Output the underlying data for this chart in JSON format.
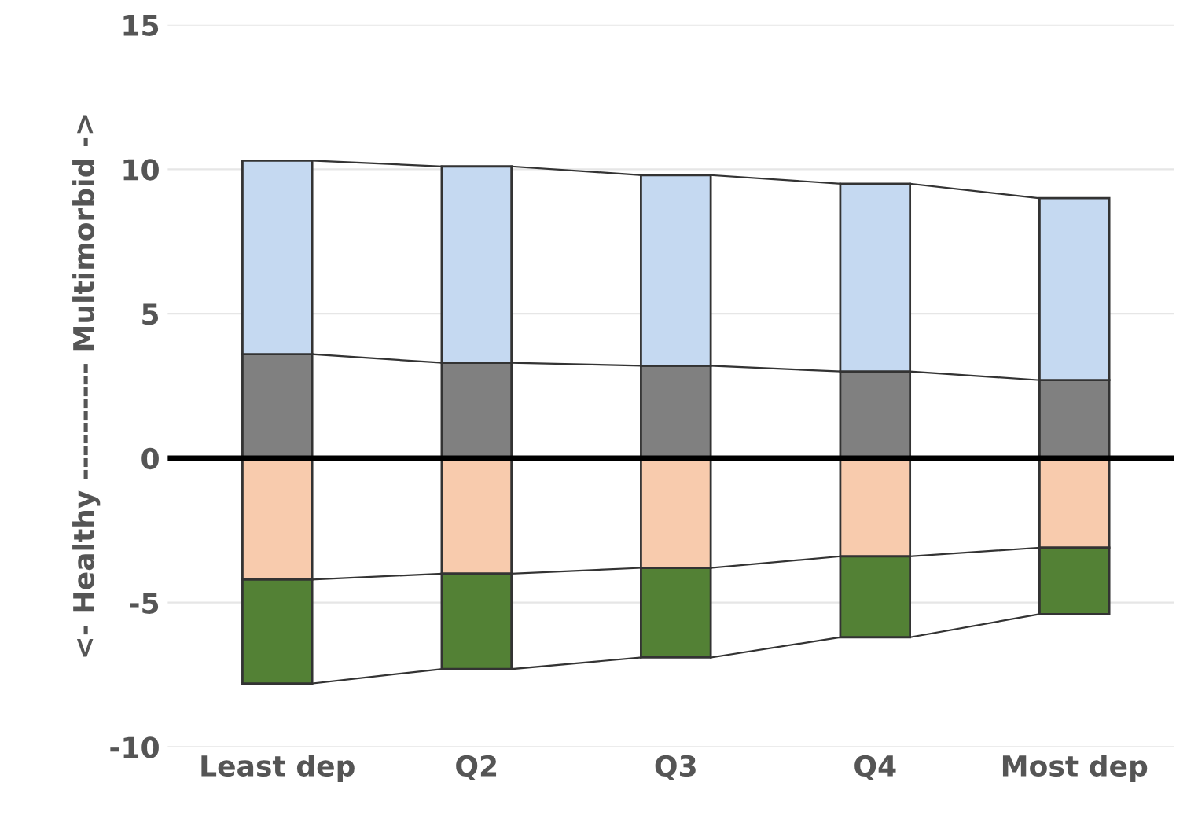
{
  "chart_data": {
    "type": "bar",
    "stacked": true,
    "ylabel": "<- Healthy ---------- Multimorbid ->",
    "categories": [
      "Least dep",
      "Q2",
      "Q3",
      "Q4",
      "Most dep"
    ],
    "series": [
      {
        "color": "#808080",
        "values": [
          3.6,
          3.3,
          3.2,
          3.0,
          2.7
        ]
      },
      {
        "color": "#c5d9f1",
        "values": [
          6.7,
          6.8,
          6.6,
          6.5,
          6.3
        ]
      },
      {
        "color": "#f8cbad",
        "values": [
          -4.2,
          -4.0,
          -3.8,
          -3.4,
          -3.1
        ]
      },
      {
        "color": "#538135",
        "values": [
          -3.6,
          -3.3,
          -3.1,
          -2.8,
          -2.3
        ]
      }
    ],
    "ylim": [
      -10,
      15
    ],
    "yticks": [
      -10,
      -5,
      0,
      5,
      10,
      15
    ],
    "grid": "y",
    "ref_lines": [
      {
        "axis": "y",
        "value": 0,
        "color": "#000000"
      }
    ],
    "legend": false
  }
}
